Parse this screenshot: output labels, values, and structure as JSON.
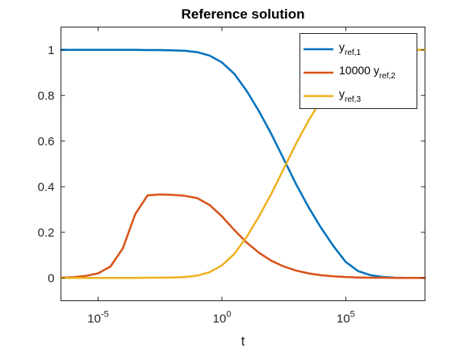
{
  "chart_data": {
    "type": "line",
    "title": "Reference solution",
    "xlabel": "t",
    "ylabel": "",
    "xscale": "log",
    "xlim_log10": [
      -6.5,
      8.2
    ],
    "ylim": [
      -0.1,
      1.1
    ],
    "grid": false,
    "legend_position": "top-right",
    "x_ticks": [
      {
        "base": "10",
        "exp": "-5",
        "log10": -5
      },
      {
        "base": "10",
        "exp": "0",
        "log10": 0
      },
      {
        "base": "10",
        "exp": "5",
        "log10": 5
      }
    ],
    "y_ticks": [
      "0",
      "0.2",
      "0.4",
      "0.6",
      "0.8",
      "1"
    ],
    "y_tick_values": [
      0,
      0.2,
      0.4,
      0.6,
      0.8,
      1
    ],
    "log10_t": [
      -6.5,
      -6,
      -5.5,
      -5,
      -4.5,
      -4,
      -3.5,
      -3,
      -2.5,
      -2,
      -1.5,
      -1,
      -0.5,
      0,
      0.5,
      1,
      1.5,
      2,
      2.5,
      3,
      3.5,
      4,
      4.5,
      5,
      5.5,
      6,
      6.5,
      7,
      7.5,
      8,
      8.2
    ],
    "series": [
      {
        "name": "y",
        "name_sub": "ref,1",
        "color": "#0072BD",
        "values": [
          1,
          1,
          1,
          1,
          1,
          1,
          1,
          0.999,
          0.999,
          0.998,
          0.996,
          0.99,
          0.975,
          0.945,
          0.895,
          0.82,
          0.73,
          0.63,
          0.52,
          0.41,
          0.31,
          0.22,
          0.14,
          0.07,
          0.03,
          0.012,
          0.004,
          0.001,
          0,
          0,
          0
        ]
      },
      {
        "name": "10000 y",
        "name_sub": "ref,2",
        "color": "#D95319",
        "values": [
          0.001,
          0.003,
          0.009,
          0.02,
          0.05,
          0.13,
          0.28,
          0.362,
          0.366,
          0.364,
          0.36,
          0.35,
          0.32,
          0.27,
          0.21,
          0.155,
          0.11,
          0.075,
          0.05,
          0.032,
          0.02,
          0.012,
          0.007,
          0.004,
          0.002,
          0.001,
          0.001,
          0,
          0,
          0,
          0
        ]
      },
      {
        "name": "y",
        "name_sub": "ref,3",
        "color": "#EDB120",
        "values": [
          0,
          0,
          0,
          0,
          0,
          0,
          0,
          0.001,
          0.001,
          0.002,
          0.004,
          0.01,
          0.025,
          0.055,
          0.105,
          0.18,
          0.27,
          0.37,
          0.48,
          0.59,
          0.69,
          0.78,
          0.86,
          0.93,
          0.97,
          0.988,
          0.996,
          0.999,
          1,
          1,
          1
        ]
      }
    ]
  }
}
